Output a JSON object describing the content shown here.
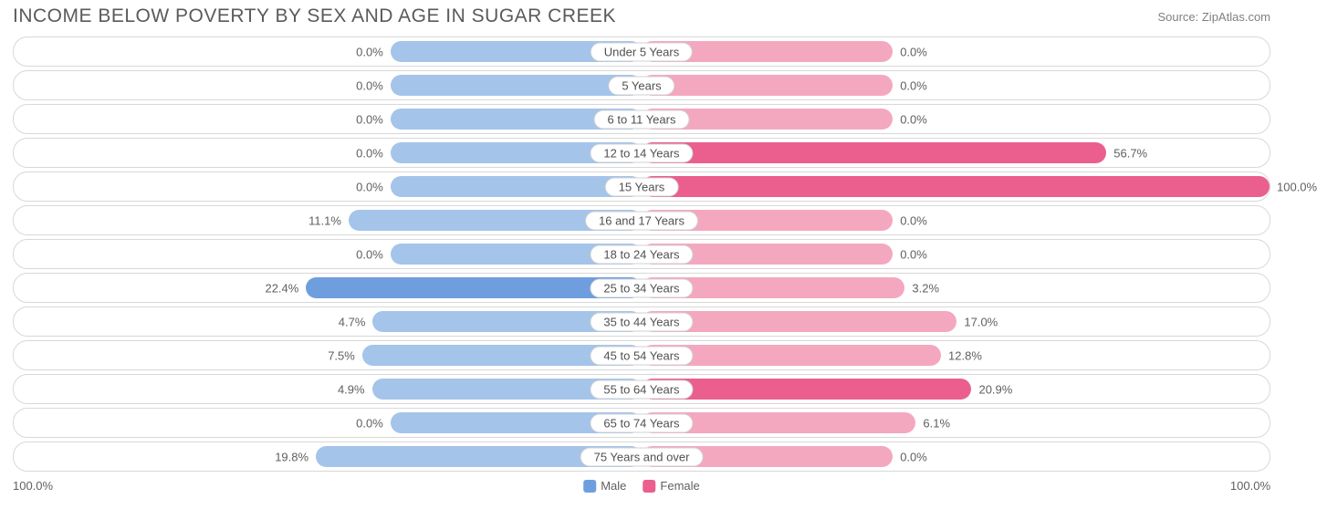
{
  "header": {
    "title": "INCOME BELOW POVERTY BY SEX AND AGE IN SUGAR CREEK",
    "source": "Source: ZipAtlas.com"
  },
  "chart": {
    "type": "diverging-bar",
    "male_color_light": "#a4c4ea",
    "male_color_dark": "#6f9ede",
    "female_color_light": "#f4a8c0",
    "female_color_dark": "#ea5f8e",
    "track_border": "#d8d8d8",
    "background": "#ffffff",
    "min_bar_half_pct": 20,
    "dark_threshold_pct": 20,
    "axis_max_pct": 100,
    "rows": [
      {
        "label": "Under 5 Years",
        "male": 0.0,
        "female": 0.0
      },
      {
        "label": "5 Years",
        "male": 0.0,
        "female": 0.0
      },
      {
        "label": "6 to 11 Years",
        "male": 0.0,
        "female": 0.0
      },
      {
        "label": "12 to 14 Years",
        "male": 0.0,
        "female": 56.7
      },
      {
        "label": "15 Years",
        "male": 0.0,
        "female": 100.0
      },
      {
        "label": "16 and 17 Years",
        "male": 11.1,
        "female": 0.0
      },
      {
        "label": "18 to 24 Years",
        "male": 0.0,
        "female": 0.0
      },
      {
        "label": "25 to 34 Years",
        "male": 22.4,
        "female": 3.2
      },
      {
        "label": "35 to 44 Years",
        "male": 4.7,
        "female": 17.0
      },
      {
        "label": "45 to 54 Years",
        "male": 7.5,
        "female": 12.8
      },
      {
        "label": "55 to 64 Years",
        "male": 4.9,
        "female": 20.9
      },
      {
        "label": "65 to 74 Years",
        "male": 0.0,
        "female": 6.1
      },
      {
        "label": "75 Years and over",
        "male": 19.8,
        "female": 0.0
      }
    ]
  },
  "footer": {
    "axis_left": "100.0%",
    "axis_right": "100.0%",
    "legend": {
      "male_label": "Male",
      "female_label": "Female"
    }
  }
}
